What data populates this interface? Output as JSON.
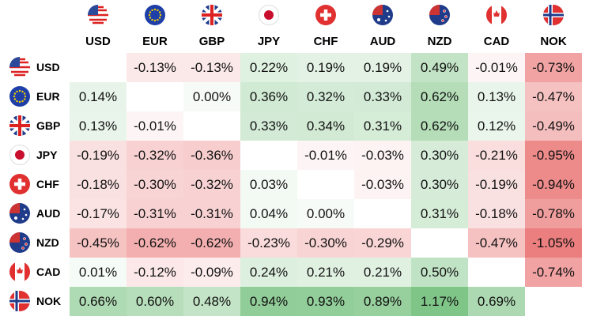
{
  "table": {
    "columns": [
      "USD",
      "EUR",
      "GBP",
      "JPY",
      "CHF",
      "AUD",
      "NZD",
      "CAD",
      "NOK"
    ],
    "rows": [
      {
        "label": "USD",
        "cells": [
          null,
          "-0.13%",
          "-0.13%",
          "0.22%",
          "0.19%",
          "0.19%",
          "0.49%",
          "-0.01%",
          "-0.73%"
        ]
      },
      {
        "label": "EUR",
        "cells": [
          "0.14%",
          null,
          "0.00%",
          "0.36%",
          "0.32%",
          "0.33%",
          "0.62%",
          "0.13%",
          "-0.47%"
        ]
      },
      {
        "label": "GBP",
        "cells": [
          "0.13%",
          "-0.01%",
          null,
          "0.33%",
          "0.34%",
          "0.31%",
          "0.62%",
          "0.12%",
          "-0.49%"
        ]
      },
      {
        "label": "JPY",
        "cells": [
          "-0.19%",
          "-0.32%",
          "-0.36%",
          null,
          "-0.01%",
          "-0.03%",
          "0.30%",
          "-0.21%",
          "-0.95%"
        ]
      },
      {
        "label": "CHF",
        "cells": [
          "-0.18%",
          "-0.30%",
          "-0.32%",
          "0.03%",
          null,
          "-0.03%",
          "0.30%",
          "-0.19%",
          "-0.94%"
        ]
      },
      {
        "label": "AUD",
        "cells": [
          "-0.17%",
          "-0.31%",
          "-0.31%",
          "0.04%",
          "0.00%",
          null,
          "0.31%",
          "-0.18%",
          "-0.78%"
        ]
      },
      {
        "label": "NZD",
        "cells": [
          "-0.45%",
          "-0.62%",
          "-0.62%",
          "-0.23%",
          "-0.30%",
          "-0.29%",
          null,
          "-0.47%",
          "-1.05%"
        ]
      },
      {
        "label": "CAD",
        "cells": [
          "0.01%",
          "-0.12%",
          "-0.09%",
          "0.24%",
          "0.21%",
          "0.21%",
          "0.50%",
          null,
          "-0.74%"
        ]
      },
      {
        "label": "NOK",
        "cells": [
          "0.66%",
          "0.60%",
          "0.48%",
          "0.94%",
          "0.93%",
          "0.89%",
          "1.17%",
          "0.69%",
          null
        ]
      }
    ]
  }
}
